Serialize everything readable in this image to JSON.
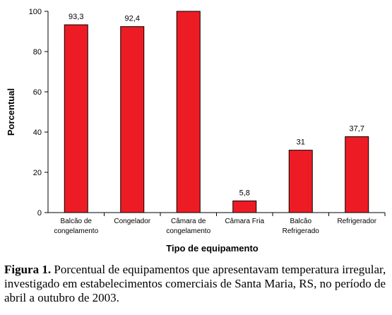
{
  "chart_data": {
    "type": "bar",
    "categories": [
      [
        "Balcão de",
        "congelamento"
      ],
      [
        "Congelador"
      ],
      [
        "Câmara de",
        "congelamento"
      ],
      [
        "Câmara Fria"
      ],
      [
        "Balcão",
        "Refrigerado"
      ],
      [
        "Refrigerador"
      ]
    ],
    "values": [
      93.3,
      92.4,
      100,
      5.8,
      31,
      37.7
    ],
    "data_labels": [
      "93,3",
      "92,4",
      "",
      "5,8",
      "31",
      "37,7"
    ],
    "xlabel": "Tipo de equipamento",
    "ylabel": "Porcentual",
    "ylim": [
      0,
      100
    ],
    "yticks": [
      0,
      20,
      40,
      60,
      80,
      100
    ],
    "bar_color": "#ed1c24",
    "grid": false,
    "legend": "none"
  },
  "caption": {
    "label": "Figura 1.",
    "text": " Porcentual de equipamentos que apresentavam temperatura irregular, investigado em estabelecimentos comerciais de Santa Maria, RS, no período de abril a outubro de 2003."
  }
}
